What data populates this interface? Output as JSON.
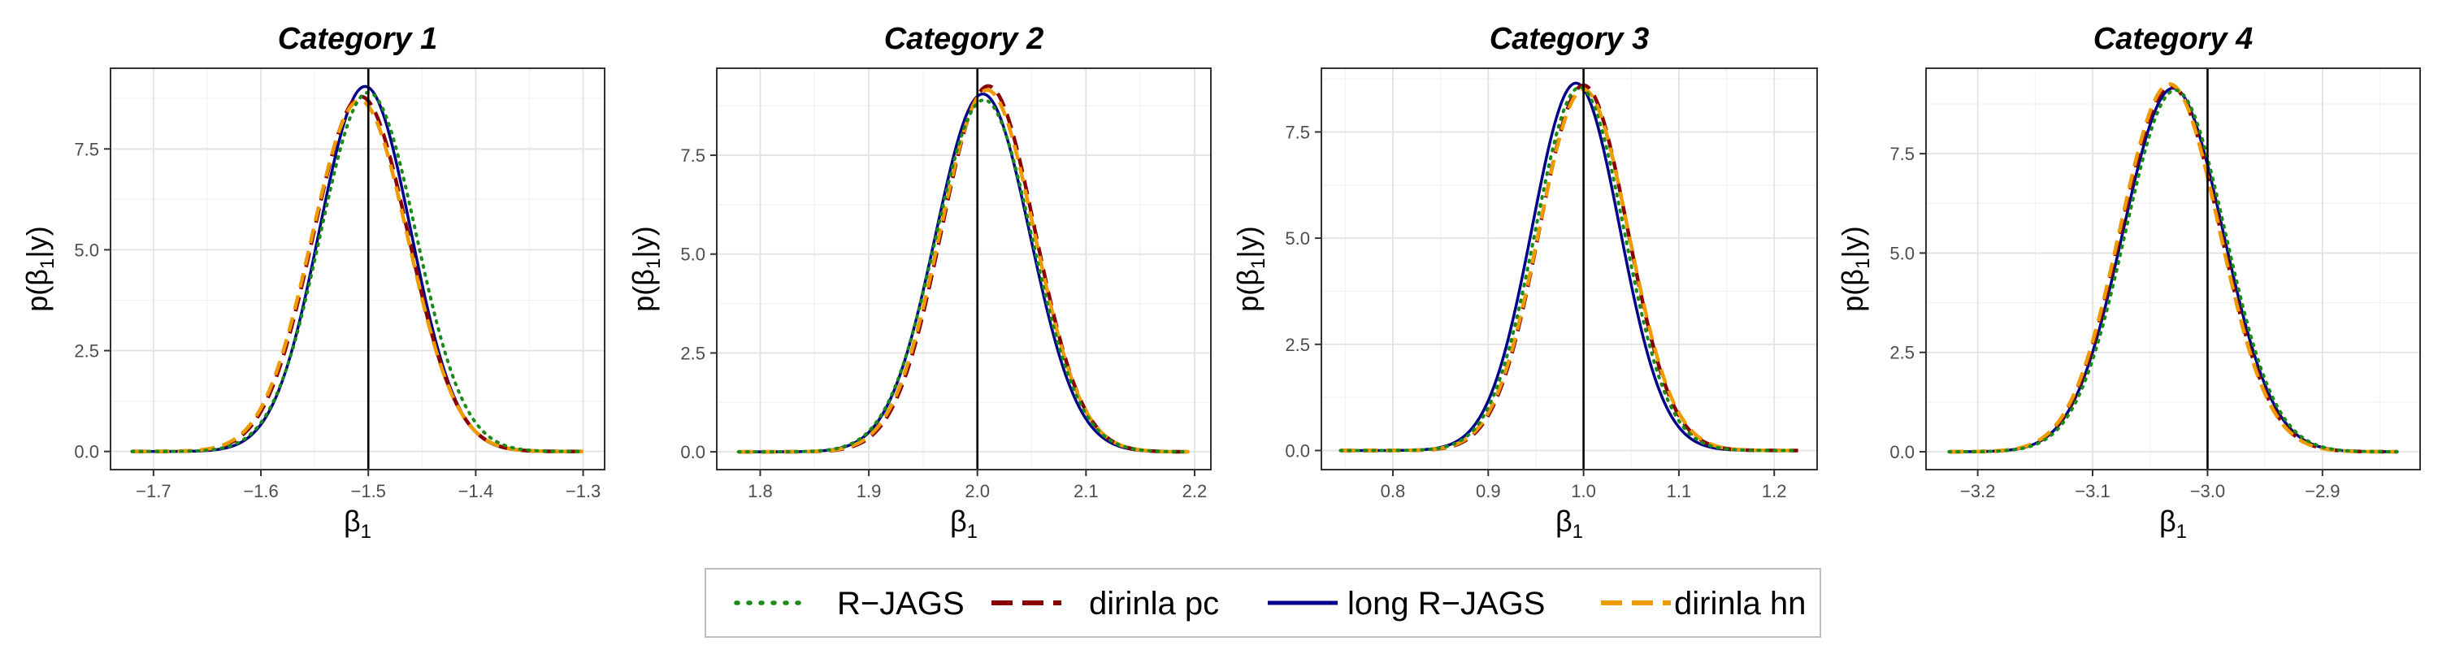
{
  "chart_data": [
    {
      "type": "line",
      "title": "Category 1",
      "xlabel": "β1",
      "ylabel": "p(β1|y)",
      "xlim": [
        -1.74,
        -1.28
      ],
      "ylim": [
        -0.45,
        9.5
      ],
      "xticks": [
        -1.7,
        -1.6,
        -1.5,
        -1.4,
        -1.3
      ],
      "xtick_labels": [
        "−1.7",
        "−1.6",
        "−1.5",
        "−1.4",
        "−1.3"
      ],
      "yticks": [
        0,
        2.5,
        5,
        7.5
      ],
      "ytick_labels": [
        "0.0",
        "2.5",
        "5.0",
        "7.5"
      ],
      "true_value": -1.5,
      "x_range": [
        -1.72,
        -1.3
      ],
      "grid": true,
      "series": [
        {
          "name": "R−JAGS",
          "mean": -1.5,
          "sd": 0.0445,
          "peak": 8.9
        },
        {
          "name": "dirinla pc",
          "mean": -1.507,
          "sd": 0.0445,
          "peak": 8.8
        },
        {
          "name": "long R−JAGS",
          "mean": -1.503,
          "sd": 0.0425,
          "peak": 9.05
        },
        {
          "name": "dirinla hn",
          "mean": -1.508,
          "sd": 0.045,
          "peak": 8.7
        }
      ]
    },
    {
      "type": "line",
      "title": "Category 2",
      "xlabel": "β1",
      "ylabel": "p(β1|y)",
      "xlim": [
        1.76,
        2.215
      ],
      "ylim": [
        -0.45,
        9.7
      ],
      "xticks": [
        1.8,
        1.9,
        2.0,
        2.1,
        2.2
      ],
      "xtick_labels": [
        "1.8",
        "1.9",
        "2.0",
        "2.1",
        "2.2"
      ],
      "yticks": [
        0,
        2.5,
        5,
        7.5
      ],
      "ytick_labels": [
        "0.0",
        "2.5",
        "5.0",
        "7.5"
      ],
      "true_value": 2.0,
      "x_range": [
        1.78,
        2.195
      ],
      "grid": true,
      "series": [
        {
          "name": "R−JAGS",
          "mean": 2.006,
          "sd": 0.0445,
          "peak": 8.9
        },
        {
          "name": "dirinla pc",
          "mean": 2.01,
          "sd": 0.043,
          "peak": 9.25
        },
        {
          "name": "long R−JAGS",
          "mean": 2.005,
          "sd": 0.0435,
          "peak": 9.05
        },
        {
          "name": "dirinla hn",
          "mean": 2.009,
          "sd": 0.0435,
          "peak": 9.15
        }
      ]
    },
    {
      "type": "line",
      "title": "Category 3",
      "xlabel": "β1",
      "ylabel": "p(β1|y)",
      "xlim": [
        0.725,
        1.245
      ],
      "ylim": [
        -0.45,
        9.0
      ],
      "xticks": [
        0.8,
        0.9,
        1.0,
        1.1,
        1.2
      ],
      "xtick_labels": [
        "0.8",
        "0.9",
        "1.0",
        "1.1",
        "1.2"
      ],
      "yticks": [
        0,
        2.5,
        5,
        7.5
      ],
      "ytick_labels": [
        "0.0",
        "2.5",
        "5.0",
        "7.5"
      ],
      "true_value": 1.0,
      "x_range": [
        0.745,
        1.225
      ],
      "grid": true,
      "series": [
        {
          "name": "R−JAGS",
          "mean": 0.996,
          "sd": 0.0465,
          "peak": 8.55
        },
        {
          "name": "dirinla pc",
          "mean": 1.0,
          "sd": 0.0462,
          "peak": 8.6
        },
        {
          "name": "long R−JAGS",
          "mean": 0.992,
          "sd": 0.046,
          "peak": 8.65
        },
        {
          "name": "dirinla hn",
          "mean": 1.0,
          "sd": 0.047,
          "peak": 8.5
        }
      ]
    },
    {
      "type": "line",
      "title": "Category 4",
      "xlabel": "β1",
      "ylabel": "p(β1|y)",
      "xlim": [
        -3.245,
        -2.815
      ],
      "ylim": [
        -0.45,
        9.65
      ],
      "xticks": [
        -3.2,
        -3.1,
        -3.0,
        -2.9
      ],
      "xtick_labels": [
        "−3.2",
        "−3.1",
        "−3.0",
        "−2.9"
      ],
      "yticks": [
        0,
        2.5,
        5,
        7.5
      ],
      "ytick_labels": [
        "0.0",
        "2.5",
        "5.0",
        "7.5"
      ],
      "true_value": -3.0,
      "x_range": [
        -3.225,
        -2.835
      ],
      "grid": true,
      "series": [
        {
          "name": "R−JAGS",
          "mean": -3.028,
          "sd": 0.0435,
          "peak": 9.1
        },
        {
          "name": "dirinla pc",
          "mean": -3.032,
          "sd": 0.0432,
          "peak": 9.2
        },
        {
          "name": "long R−JAGS",
          "mean": -3.03,
          "sd": 0.0435,
          "peak": 9.15
        },
        {
          "name": "dirinla hn",
          "mean": -3.033,
          "sd": 0.0432,
          "peak": 9.25
        }
      ]
    }
  ],
  "legend": {
    "position": "bottom",
    "items": [
      {
        "label": "R−JAGS",
        "color": "#1a8a1a",
        "linestyle": "dotted"
      },
      {
        "label": "dirinla pc",
        "color": "#8b0000",
        "linestyle": "dashed"
      },
      {
        "label": "long R−JAGS",
        "color": "#00008b",
        "linestyle": "solid"
      },
      {
        "label": "dirinla hn",
        "color": "#ee9a00",
        "linestyle": "dashed"
      }
    ]
  }
}
